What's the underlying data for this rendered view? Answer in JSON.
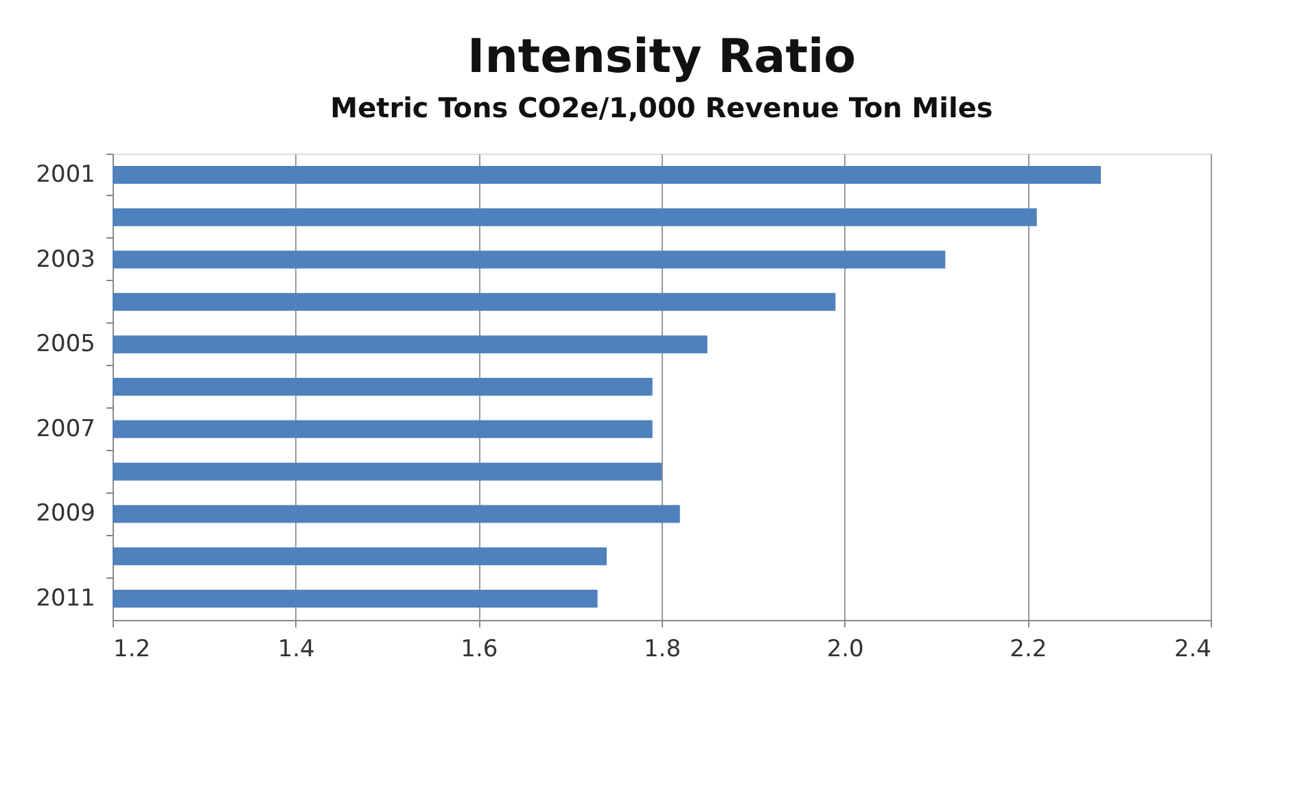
{
  "chart_data": {
    "type": "bar",
    "orientation": "horizontal",
    "title": "Intensity Ratio",
    "subtitle": "Metric Tons CO2e/1,000 Revenue Ton Miles",
    "categories": [
      "2001",
      null,
      "2003",
      null,
      "2005",
      null,
      "2007",
      null,
      "2009",
      null,
      "2011"
    ],
    "values": [
      2.28,
      2.21,
      2.11,
      1.99,
      1.85,
      1.79,
      1.79,
      1.8,
      1.82,
      1.74,
      1.73
    ],
    "color": "#4f81bd",
    "xlim": [
      1.2,
      2.4
    ],
    "xticks": [
      1.2,
      1.4,
      1.6,
      1.8,
      {
        "value": 2,
        "label": "2.0"
      },
      2.2,
      2.4
    ],
    "grid": "x"
  }
}
